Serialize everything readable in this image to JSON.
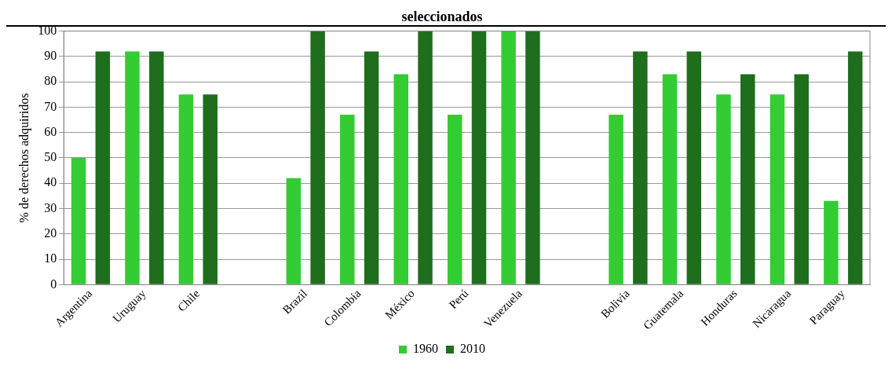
{
  "chart_data": {
    "type": "bar",
    "title": "seleccionados",
    "ylabel": "% de derechos adquiridos",
    "categories": [
      "Argentina",
      "Uruguay",
      "Chile",
      null,
      "Brazil",
      "Colombia",
      "México",
      "Perú",
      "Venezuela",
      null,
      "Bolivia",
      "Guatemala",
      "Honduras",
      "Nicaragua",
      "Paraguay"
    ],
    "series": [
      {
        "name": "1960",
        "color": "#33cc33",
        "values": [
          50,
          92,
          75,
          null,
          42,
          67,
          83,
          67,
          100,
          null,
          67,
          83,
          75,
          75,
          33
        ]
      },
      {
        "name": "2010",
        "color": "#1e6e1e",
        "values": [
          92,
          92,
          75,
          null,
          100,
          92,
          100,
          100,
          100,
          null,
          92,
          92,
          83,
          83,
          92
        ]
      }
    ],
    "ylim": [
      0,
      100
    ],
    "yticks": [
      0,
      10,
      20,
      30,
      40,
      50,
      60,
      70,
      80,
      90,
      100
    ],
    "grid": "y",
    "legend": "bottom"
  }
}
